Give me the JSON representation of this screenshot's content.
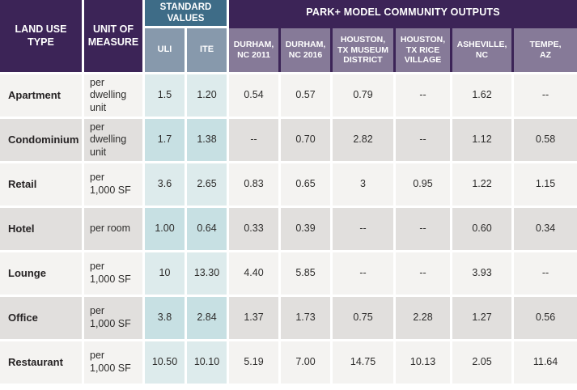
{
  "colors": {
    "header_purple": "#3c2457",
    "city_header_purple": "#867a98",
    "standard_header_teal": "#3e6c87",
    "uli_ite_header_blue": "#8799ac",
    "row_light": "#f4f3f1",
    "row_dark": "#e1dfdd",
    "standard_cell_light": "#ddebec",
    "standard_cell_dark": "#c7e0e3",
    "body_text": "#2e2d2c",
    "header_text": "#ffffff"
  },
  "chart_data": {
    "type": "table",
    "header": {
      "land_use_label": "LAND USE\nTYPE",
      "unit_label": "UNIT OF\nMEASURE",
      "standard_values_label": "STANDARD\nVALUES",
      "park_outputs_label": "PARK+ MODEL COMMUNITY OUTPUTS",
      "standard_columns": [
        "ULI",
        "ITE"
      ],
      "community_columns": [
        "DURHAM,\nNC 2011",
        "DURHAM,\nNC 2016",
        "HOUSTON,\nTX MUSEUM\nDISTRICT",
        "HOUSTON,\nTX RICE\nVILLAGE",
        "ASHEVILLE,\nNC",
        "TEMPE,\nAZ"
      ]
    },
    "rows": [
      {
        "land_use": "Apartment",
        "unit": "per\ndwelling\nunit",
        "uli": "1.5",
        "ite": "1.20",
        "outputs": [
          "0.54",
          "0.57",
          "0.79",
          "--",
          "1.62",
          "--"
        ]
      },
      {
        "land_use": "Condominium",
        "unit": "per\ndwelling\nunit",
        "uli": "1.7",
        "ite": "1.38",
        "outputs": [
          "--",
          "0.70",
          "2.82",
          "--",
          "1.12",
          "0.58"
        ]
      },
      {
        "land_use": "Retail",
        "unit": "per\n1,000 SF",
        "uli": "3.6",
        "ite": "2.65",
        "outputs": [
          "0.83",
          "0.65",
          "3",
          "0.95",
          "1.22",
          "1.15"
        ]
      },
      {
        "land_use": "Hotel",
        "unit": "per room",
        "uli": "1.00",
        "ite": "0.64",
        "outputs": [
          "0.33",
          "0.39",
          "--",
          "--",
          "0.60",
          "0.34"
        ]
      },
      {
        "land_use": "Lounge",
        "unit": "per\n1,000 SF",
        "uli": "10",
        "ite": "13.30",
        "outputs": [
          "4.40",
          "5.85",
          "--",
          "--",
          "3.93",
          "--"
        ]
      },
      {
        "land_use": "Office",
        "unit": "per\n1,000 SF",
        "uli": "3.8",
        "ite": "2.84",
        "outputs": [
          "1.37",
          "1.73",
          "0.75",
          "2.28",
          "1.27",
          "0.56"
        ]
      },
      {
        "land_use": "Restaurant",
        "unit": "per\n1,000 SF",
        "uli": "10.50",
        "ite": "10.10",
        "outputs": [
          "5.19",
          "7.00",
          "14.75",
          "10.13",
          "2.05",
          "11.64"
        ]
      }
    ]
  }
}
